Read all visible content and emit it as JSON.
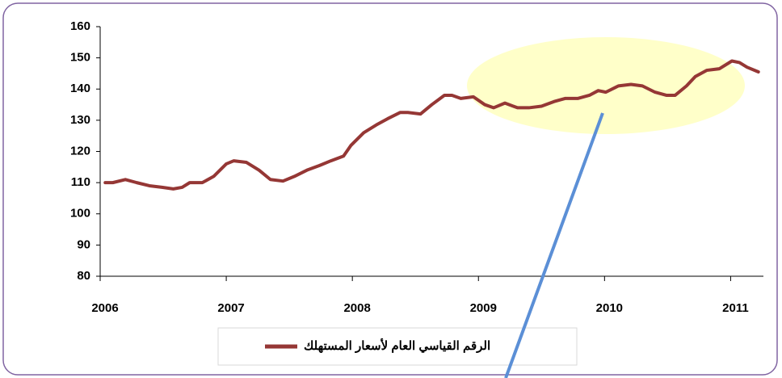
{
  "chart_data": {
    "type": "line",
    "x": [
      2006.04,
      2006.1,
      2006.2,
      2006.29,
      2006.39,
      2006.49,
      2006.58,
      2006.65,
      2006.71,
      2006.81,
      2006.9,
      2007.0,
      2007.06,
      2007.16,
      2007.26,
      2007.35,
      2007.45,
      2007.54,
      2007.64,
      2007.74,
      2007.83,
      2007.93,
      2007.99,
      2008.09,
      2008.19,
      2008.28,
      2008.38,
      2008.44,
      2008.54,
      2008.63,
      2008.73,
      2008.79,
      2008.86,
      2008.96,
      2009.05,
      2009.12,
      2009.21,
      2009.31,
      2009.4,
      2009.5,
      2009.6,
      2009.69,
      2009.79,
      2009.88,
      2009.95,
      2010.01,
      2010.11,
      2010.21,
      2010.3,
      2010.4,
      2010.49,
      2010.56,
      2010.65,
      2010.72,
      2010.81,
      2010.91,
      2011.01,
      2011.07,
      2011.13,
      2011.22
    ],
    "series": [
      {
        "name": "الرقم القياسي العام لأسعار المستهلك",
        "color": "#953735",
        "values": [
          110,
          110,
          111,
          110,
          109,
          108.5,
          108,
          108.5,
          110,
          110,
          112,
          116,
          117,
          116.5,
          114,
          111,
          110.5,
          112,
          114,
          115.5,
          117,
          118.5,
          122,
          126,
          128.5,
          130.5,
          132.5,
          132.5,
          132,
          135,
          138,
          138,
          137,
          137.5,
          135,
          134,
          135.5,
          134,
          134,
          134.5,
          136,
          137,
          137,
          138,
          139.5,
          139,
          141,
          141.5,
          141,
          139,
          138,
          138,
          141,
          144,
          146,
          146.5,
          149,
          148.5,
          147,
          145.5
        ]
      }
    ],
    "xlim": [
      2006,
      2011.26
    ],
    "xticks": [
      2006,
      2007,
      2008,
      2009,
      2010,
      2011
    ],
    "ylim": [
      80,
      160
    ],
    "yticks": [
      80,
      90,
      100,
      110,
      120,
      130,
      140,
      150,
      160
    ],
    "legend": "bottom"
  }
}
